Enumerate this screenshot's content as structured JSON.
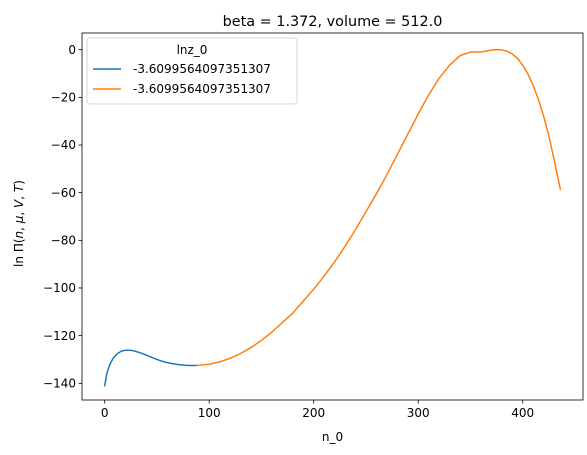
{
  "chart_data": {
    "type": "line",
    "title": "beta = 1.372, volume = 512.0",
    "xlabel": "n_0",
    "ylabel": "ln Π(n, μ, V, T)",
    "xlim": [
      -21.7,
      457.7
    ],
    "ylim": [
      -147.0,
      7.0
    ],
    "xticks": [
      0,
      100,
      200,
      300,
      400
    ],
    "yticks": [
      0,
      -20,
      -40,
      -60,
      -80,
      -100,
      -120,
      -140
    ],
    "grid": false,
    "legend": {
      "title": "lnz_0",
      "placement": "top-left",
      "entries": [
        "-3.6099564097351307",
        "-3.6099564097351307"
      ]
    },
    "series": [
      {
        "name": "-3.6099564097351307",
        "color": "#1f77b4",
        "x": [
          0,
          2,
          5,
          8,
          12,
          16,
          20,
          24,
          28,
          32,
          36,
          40,
          46,
          52,
          58,
          64,
          70,
          76,
          82,
          88
        ],
        "y": [
          -141.0,
          -136.0,
          -132.0,
          -129.6,
          -127.6,
          -126.5,
          -126.1,
          -126.1,
          -126.4,
          -126.9,
          -127.5,
          -128.2,
          -129.3,
          -130.3,
          -131.1,
          -131.7,
          -132.1,
          -132.4,
          -132.5,
          -132.5
        ]
      },
      {
        "name": "-3.6099564097351307",
        "color": "#ff7f0e",
        "x": [
          88,
          100,
          110,
          120,
          130,
          140,
          150,
          160,
          170,
          180,
          190,
          200,
          210,
          220,
          230,
          240,
          250,
          260,
          270,
          280,
          290,
          300,
          310,
          320,
          330,
          340,
          350,
          360,
          365,
          370,
          375,
          380,
          385,
          390,
          395,
          400,
          405,
          410,
          415,
          420,
          425,
          430,
          436
        ],
        "y": [
          -132.5,
          -132.0,
          -131.0,
          -129.5,
          -127.5,
          -125.0,
          -122.0,
          -118.5,
          -114.5,
          -110.5,
          -105.5,
          -100.5,
          -95.0,
          -89.0,
          -82.5,
          -75.5,
          -68.0,
          -60.5,
          -52.5,
          -44.0,
          -35.5,
          -27.0,
          -19.0,
          -12.0,
          -6.5,
          -2.5,
          -1.0,
          -1.0,
          -0.6,
          -0.2,
          0.0,
          -0.1,
          -0.6,
          -1.8,
          -3.7,
          -6.5,
          -10.2,
          -15.0,
          -20.8,
          -27.8,
          -36.2,
          -46.0,
          -58.5
        ]
      }
    ]
  }
}
